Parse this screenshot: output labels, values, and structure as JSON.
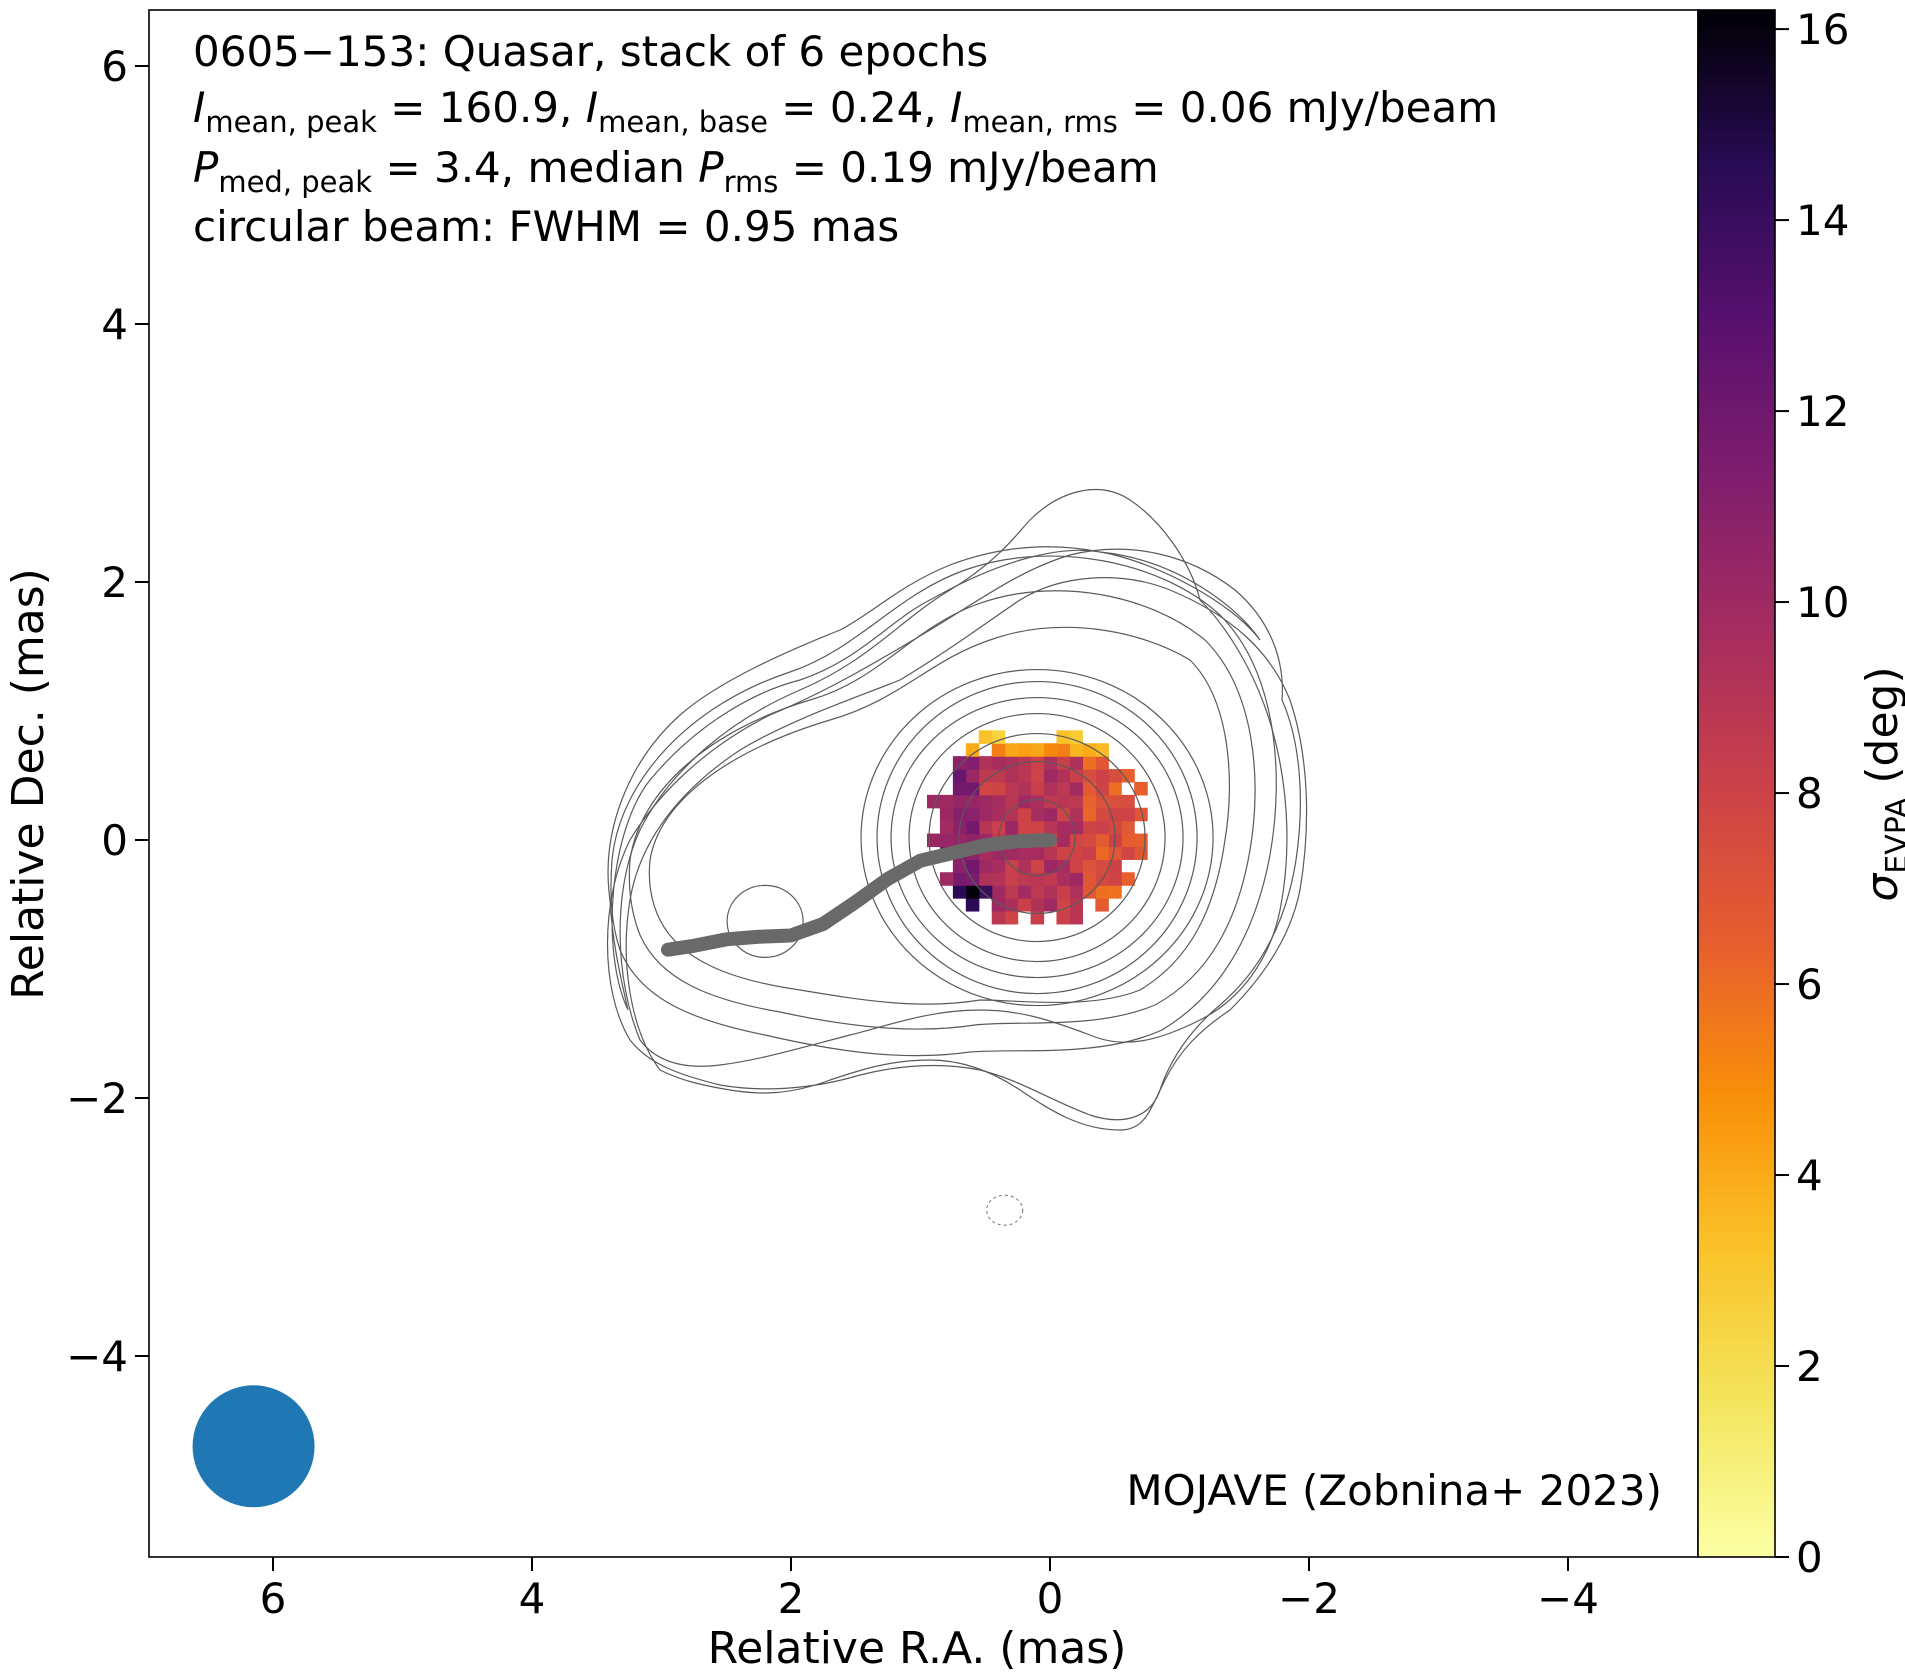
{
  "chart_data": {
    "type": "heatmap",
    "annotations": {
      "line1": "0605−153: Quasar, stack of 6 epochs",
      "line2": {
        "s1": "I",
        "s1sub": "mean, peak",
        "s1tail": " = 160.9, ",
        "s2": "I",
        "s2sub": "mean, base",
        "s2tail": " = 0.24, ",
        "s3": "I",
        "s3sub": "mean, rms",
        "s3tail": " = 0.06 mJy/beam"
      },
      "line3": {
        "s1": "P",
        "s1sub": "med, peak",
        "s1tail": " = 3.4, median ",
        "s2": "P",
        "s2sub": "rms",
        "s2tail": " = 0.19 mJy/beam"
      },
      "line4": "circular beam: FWHM = 0.95 mas",
      "credit": "MOJAVE (Zobnina+ 2023)"
    },
    "xlabel": "Relative R.A. (mas)",
    "ylabel": "Relative Dec. (mas)",
    "xlim": [
      7.0,
      -5.0
    ],
    "ylim": [
      -5.5,
      6.4
    ],
    "xticks": [
      6,
      4,
      2,
      0,
      -2,
      -4
    ],
    "xtick_labels": [
      "6",
      "4",
      "2",
      "0",
      "−2",
      "−4"
    ],
    "yticks": [
      6,
      4,
      2,
      0,
      -2,
      -4
    ],
    "ytick_labels": [
      "6",
      "4",
      "2",
      "0",
      "−2",
      "−4"
    ],
    "colorbar": {
      "label_symbol": "σ",
      "label_sub": "EVPA",
      "label_tail": " (deg)",
      "range": [
        0,
        16.2
      ],
      "ticks": [
        0,
        2,
        4,
        6,
        8,
        10,
        12,
        14,
        16
      ],
      "tick_labels": [
        "0",
        "2",
        "4",
        "6",
        "8",
        "10",
        "12",
        "14",
        "16"
      ],
      "colormap": "inferno_r"
    },
    "beam": {
      "x": 6.15,
      "y": -4.7,
      "fwhm": 0.95,
      "color": "#1f77b4"
    },
    "ridgeline": {
      "color": "#696969",
      "points": [
        [
          0.0,
          0.0
        ],
        [
          0.25,
          -0.01
        ],
        [
          0.5,
          -0.04
        ],
        [
          0.75,
          -0.1
        ],
        [
          1.0,
          -0.16
        ],
        [
          1.25,
          -0.3
        ],
        [
          1.5,
          -0.48
        ],
        [
          1.75,
          -0.65
        ],
        [
          2.0,
          -0.74
        ],
        [
          2.25,
          -0.75
        ],
        [
          2.5,
          -0.77
        ],
        [
          2.75,
          -0.82
        ],
        [
          2.95,
          -0.85
        ]
      ]
    },
    "contours": {
      "center_core": [
        0.1,
        0.05
      ],
      "center_knot": [
        2.2,
        -0.6
      ],
      "negative_contour_center": [
        0.35,
        -2.87
      ]
    },
    "evpa_map": {
      "extent_x": [
        -0.7,
        1.0
      ],
      "extent_y": [
        -0.6,
        0.85
      ],
      "typical_values": {
        "top_edge": 3,
        "east_side": 11,
        "center": 9,
        "west_side": 7,
        "south_east_corner": 15
      }
    },
    "grid": false,
    "legend": "none"
  }
}
